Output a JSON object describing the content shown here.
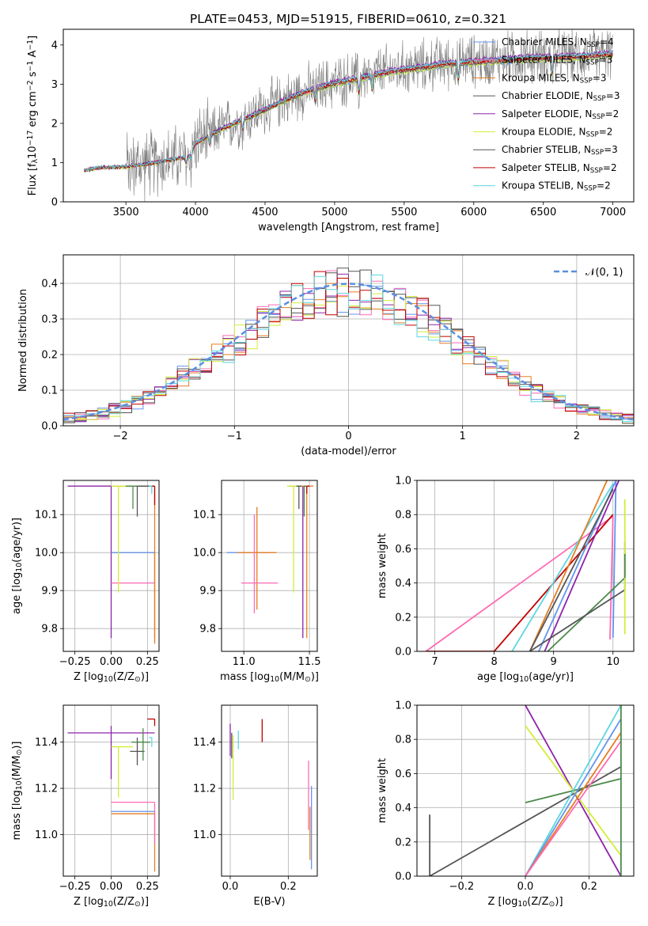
{
  "colors": {
    "chabrier_miles": "#6495ed",
    "salpeter_miles": "#ff69b4",
    "kroupa_miles": "#e67e22",
    "chabrier_elodie": "#555555",
    "salpeter_elodie": "#8e24aa",
    "kroupa_elodie": "#d4ed3a",
    "chabrier_stelib": "#555555",
    "salpeter_stelib": "#c00000",
    "kroupa_stelib": "#5ed6e0",
    "gauss": "#5b8ee0",
    "green": "#4a8a4a",
    "spectrum_data": "#7f7f7f"
  },
  "chart_data": [
    {
      "type": "line",
      "title": "PLATE=0453, MJD=51915, FIBERID=0610, z=0.321",
      "xlabel": "wavelength [Angstrom, rest frame]",
      "ylabel": "Flux [f$_\\lambda$10$^{-17}$ erg cm$^{-2}$ s$^{-1}$ A$^{-1}$]",
      "xlim": [
        3050,
        7150
      ],
      "ylim": [
        0,
        4.4
      ],
      "xticks": [
        "3500",
        "4000",
        "4500",
        "5000",
        "5500",
        "6000",
        "6500",
        "7000"
      ],
      "yticks": [
        "0",
        "1",
        "2",
        "3",
        "4"
      ],
      "legend_position": "top-right",
      "legend": [
        {
          "prefix": "Chabrier MILES, N",
          "sub": "SSP",
          "suffix": "=4",
          "color": "#6495ed"
        },
        {
          "prefix": "Salpeter MILES, N",
          "sub": "SSP",
          "suffix": "=3",
          "color": "#ff69b4"
        },
        {
          "prefix": "Kroupa MILES, N",
          "sub": "SSP",
          "suffix": "=3",
          "color": "#e67e22"
        },
        {
          "prefix": "Chabrier ELODIE, N",
          "sub": "SSP",
          "suffix": "=3",
          "color": "#555555"
        },
        {
          "prefix": "Salpeter ELODIE, N",
          "sub": "SSP",
          "suffix": "=2",
          "color": "#8e24aa"
        },
        {
          "prefix": "Kroupa ELODIE, N",
          "sub": "SSP",
          "suffix": "=2",
          "color": "#d4ed3a"
        },
        {
          "prefix": "Chabrier STELIB, N",
          "sub": "SSP",
          "suffix": "=3",
          "color": "#555555"
        },
        {
          "prefix": "Salpeter STELIB, N",
          "sub": "SSP",
          "suffix": "=2",
          "color": "#c00000"
        },
        {
          "prefix": "Kroupa STELIB, N",
          "sub": "SSP",
          "suffix": "=2",
          "color": "#5ed6e0"
        }
      ],
      "continuum": {
        "x": [
          3200,
          3300,
          3500,
          3700,
          3850,
          3950,
          4000,
          4200,
          4400,
          4600,
          4800,
          5000,
          5200,
          5400,
          5600,
          5800,
          6000,
          6200,
          6400,
          6600,
          6800,
          7000
        ],
        "y": [
          0.8,
          0.88,
          0.9,
          1.0,
          1.1,
          1.15,
          1.5,
          1.9,
          2.2,
          2.55,
          2.85,
          3.05,
          3.2,
          3.35,
          3.45,
          3.55,
          3.6,
          3.65,
          3.7,
          3.72,
          3.75,
          3.8
        ]
      }
    },
    {
      "type": "line",
      "xlabel": "(data-model)/error",
      "ylabel": "Normed distribution",
      "xlim": [
        -2.5,
        2.5
      ],
      "ylim": [
        0,
        0.48
      ],
      "xticks": [
        "−2",
        "−1",
        "0",
        "1",
        "2"
      ],
      "yticks": [
        "0.0",
        "0.1",
        "0.2",
        "0.3",
        "0.4"
      ],
      "grid": true,
      "legend_position": "top-right",
      "legend": [
        {
          "label": "𝒩(0, 1)",
          "color": "#5b8ee0",
          "style": "dashed"
        }
      ],
      "series": [
        {
          "name": "N(0,1)",
          "x": [
            -2.5,
            -2.0,
            -1.5,
            -1.0,
            -0.5,
            0,
            0.5,
            1.0,
            1.5,
            2.0,
            2.5
          ],
          "y": [
            0.0175,
            0.054,
            0.1295,
            0.242,
            0.352,
            0.399,
            0.352,
            0.242,
            0.1295,
            0.054,
            0.0175
          ]
        }
      ]
    },
    {
      "type": "scatter",
      "xlabel": "Z [log$_{10}$(Z/Z$_\\odot$)]",
      "ylabel": "age  [log$_{10}$(age/yr)]",
      "xlim": [
        -0.33,
        0.33
      ],
      "ylim": [
        9.74,
        10.19
      ],
      "xticks": [
        "−0.25",
        "0.00",
        "0.25"
      ],
      "yticks": [
        "9.8",
        "9.9",
        "10.0",
        "10.1"
      ],
      "grid": true
    },
    {
      "type": "scatter",
      "xlabel": "mass [log$_{10}$(M/M$_\\odot$)]",
      "xlim": [
        10.83,
        11.56
      ],
      "ylim": [
        9.74,
        10.19
      ],
      "xticks": [
        "11.0",
        "11.5"
      ],
      "yticks": [
        "9.8",
        "9.9",
        "10.0",
        "10.1"
      ],
      "grid": true
    },
    {
      "type": "line",
      "xlabel": "age  [log$_{10}$(age/yr)]",
      "ylabel": "mass weight",
      "xlim": [
        6.7,
        10.35
      ],
      "ylim": [
        0,
        1
      ],
      "xticks": [
        "7",
        "8",
        "9",
        "10"
      ],
      "yticks": [
        "0.0",
        "0.2",
        "0.4",
        "0.6",
        "0.8",
        "1.0"
      ],
      "grid": true
    },
    {
      "type": "scatter",
      "xlabel": "Z [log$_{10}$(Z/Z$_\\odot$)]",
      "ylabel": "mass [log$_{10}$(M/M$_\\odot$)]",
      "xlim": [
        -0.33,
        0.33
      ],
      "ylim": [
        10.82,
        11.56
      ],
      "xticks": [
        "−0.25",
        "0.00",
        "0.25"
      ],
      "yticks": [
        "11.0",
        "11.2",
        "11.4"
      ],
      "grid": true
    },
    {
      "type": "scatter",
      "xlabel": "E(B-V)",
      "xlim": [
        -0.03,
        0.3
      ],
      "ylim": [
        10.82,
        11.56
      ],
      "xticks": [
        "0.0",
        "0.2"
      ],
      "yticks": [
        "11.0",
        "11.2",
        "11.4"
      ],
      "grid": true
    },
    {
      "type": "line",
      "xlabel": "Z [log$_{10}$(Z/Z$_\\odot$)]",
      "ylabel": "mass weight",
      "xlim": [
        -0.34,
        0.34
      ],
      "ylim": [
        0,
        1
      ],
      "xticks": [
        "−0.2",
        "0.0",
        "0.2"
      ],
      "yticks": [
        "0.0",
        "0.2",
        "0.4",
        "0.6",
        "0.8",
        "1.0"
      ],
      "grid": true
    }
  ]
}
